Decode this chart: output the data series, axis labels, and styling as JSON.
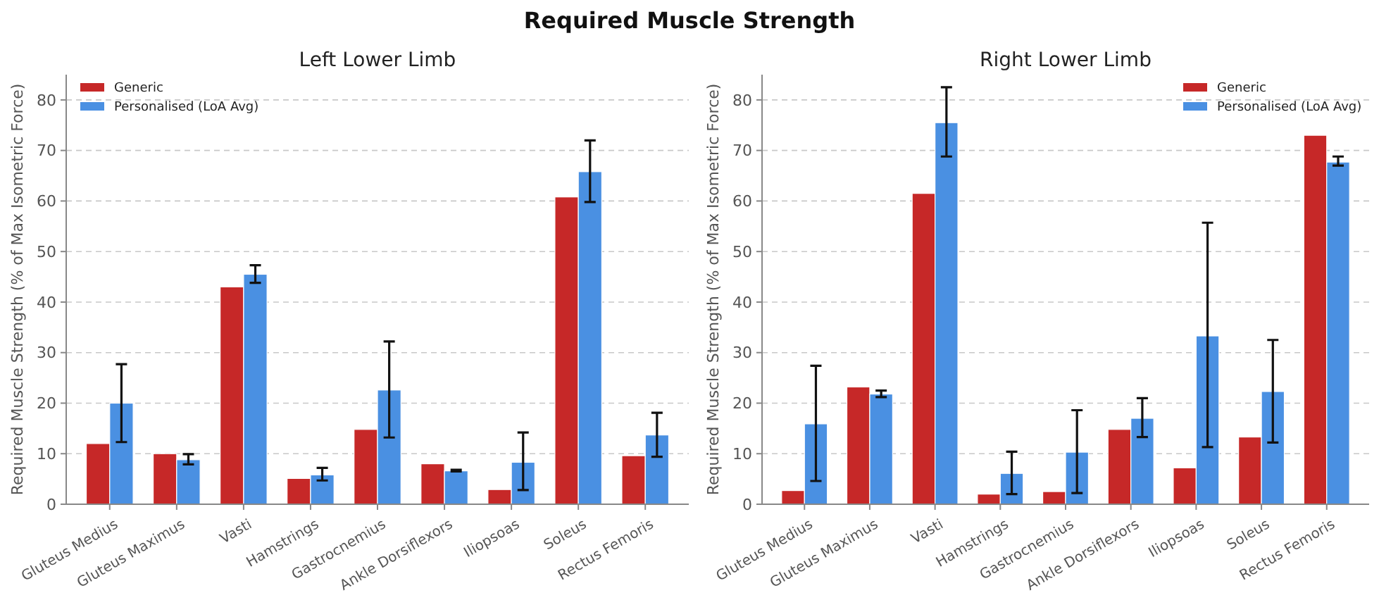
{
  "chart_data": [
    {
      "type": "bar",
      "title": "Left Lower Limb",
      "ylabel": "Required Muscle Strength (% of Max Isometric Force)",
      "annotations": [
        "Required Muscle Strength"
      ],
      "categories": [
        "Gluteus Medius",
        "Gluteus Maximus",
        "Vasti",
        "Hamstrings",
        "Gastrocnemius",
        "Ankle Dorsiflexors",
        "Iliopsoas",
        "Soleus",
        "Rectus Femoris"
      ],
      "series": [
        {
          "name": "Generic",
          "color": "#c62828",
          "values": [
            12,
            10,
            43,
            5.1,
            14.8,
            8,
            2.9,
            60.8,
            9.6
          ]
        },
        {
          "name": "Personalised (LoA Avg)",
          "color": "#4a90e2",
          "values": [
            20,
            8.8,
            45.5,
            5.8,
            22.6,
            6.6,
            8.3,
            65.8,
            13.7
          ],
          "errors": [
            [
              12.3,
              27.7
            ],
            [
              7.9,
              9.9
            ],
            [
              43.8,
              47.3
            ],
            [
              4.7,
              7.2
            ],
            [
              13.2,
              32.2
            ],
            [
              6.5,
              6.8
            ],
            [
              2.8,
              14.2
            ],
            [
              59.8,
              72
            ],
            [
              9.4,
              18.1
            ]
          ]
        }
      ],
      "ylim": [
        0,
        85
      ],
      "yticks": [
        0,
        10,
        20,
        30,
        40,
        50,
        60,
        70,
        80
      ],
      "grid": "y",
      "legend": "top left"
    },
    {
      "type": "bar",
      "title": "Right Lower Limb",
      "ylabel": "Required Muscle Strength (% of Max Isometric Force)",
      "categories": [
        "Gluteus Medius",
        "Gluteus Maximus",
        "Vasti",
        "Hamstrings",
        "Gastrocnemius",
        "Ankle Dorsiflexors",
        "Iliopsoas",
        "Soleus",
        "Rectus Femoris"
      ],
      "series": [
        {
          "name": "Generic",
          "color": "#c62828",
          "values": [
            2.7,
            23.2,
            61.5,
            2.0,
            2.5,
            14.8,
            7.2,
            13.3,
            73.0
          ]
        },
        {
          "name": "Personalised (LoA Avg)",
          "color": "#4a90e2",
          "values": [
            15.9,
            21.8,
            75.5,
            6.1,
            10.3,
            17.0,
            33.3,
            22.3,
            67.7
          ],
          "errors": [
            [
              4.6,
              27.4
            ],
            [
              21.2,
              22.5
            ],
            [
              68.8,
              82.5
            ],
            [
              2.0,
              10.4
            ],
            [
              2.2,
              18.6
            ],
            [
              13.3,
              21.0
            ],
            [
              11.3,
              55.7
            ],
            [
              12.2,
              32.5
            ],
            [
              67.0,
              68.8
            ]
          ]
        }
      ],
      "ylim": [
        0,
        85
      ],
      "yticks": [
        0,
        10,
        20,
        30,
        40,
        50,
        60,
        70,
        80
      ],
      "grid": "y",
      "legend": "top right"
    }
  ]
}
